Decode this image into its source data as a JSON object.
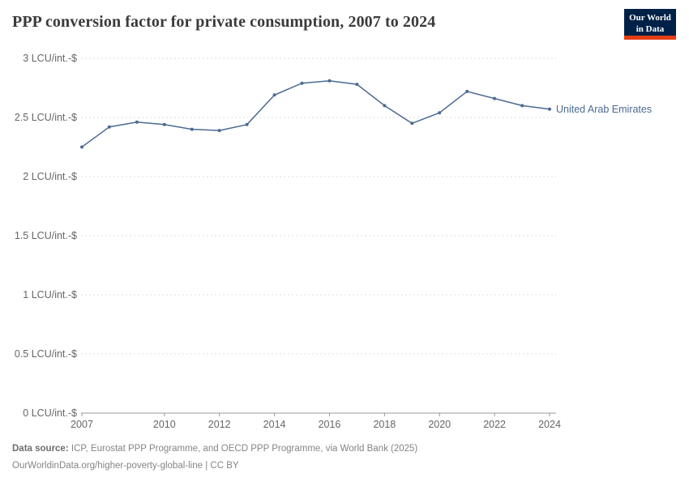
{
  "header": {
    "title": "PPP conversion factor for private consumption, 2007 to 2024"
  },
  "logo": {
    "line1": "Our World",
    "line2": "in Data",
    "bg_color": "#002147",
    "accent_color": "#e63e13"
  },
  "chart_data": {
    "type": "line",
    "title": "PPP conversion factor for private consumption, 2007 to 2024",
    "x": [
      2007,
      2008,
      2009,
      2010,
      2011,
      2012,
      2013,
      2014,
      2015,
      2016,
      2017,
      2018,
      2019,
      2020,
      2021,
      2022,
      2023,
      2024
    ],
    "series": [
      {
        "name": "United Arab Emirates",
        "color": "#4c6a92",
        "values": [
          2.25,
          2.42,
          2.46,
          2.44,
          2.4,
          2.39,
          2.44,
          2.69,
          2.79,
          2.81,
          2.78,
          2.6,
          2.45,
          2.54,
          2.72,
          2.66,
          2.6,
          2.57
        ]
      }
    ],
    "ylim": [
      0,
      3
    ],
    "yticks": [
      0,
      0.5,
      1,
      1.5,
      2,
      2.5,
      3
    ],
    "ytick_labels": [
      "0 LCU/int.-$",
      "0.5 LCU/int.-$",
      "1 LCU/int.-$",
      "1.5 LCU/int.-$",
      "2 LCU/int.-$",
      "2.5 LCU/int.-$",
      "3 LCU/int.-$"
    ],
    "xticks": [
      2007,
      2010,
      2012,
      2014,
      2016,
      2018,
      2020,
      2022,
      2024
    ],
    "grid": "horizontal-dashed",
    "grid_color": "#dddddd",
    "axis_color": "#999999",
    "tick_text_color": "#666666",
    "legend_position": "end-of-line-label"
  },
  "footer": {
    "datasource_label": "Data source:",
    "datasource_text": " ICP, Eurostat PPP Programme, and OECD PPP Programme, via World Bank (2025)",
    "license_text": "OurWorldinData.org/higher-poverty-global-line | CC BY"
  }
}
